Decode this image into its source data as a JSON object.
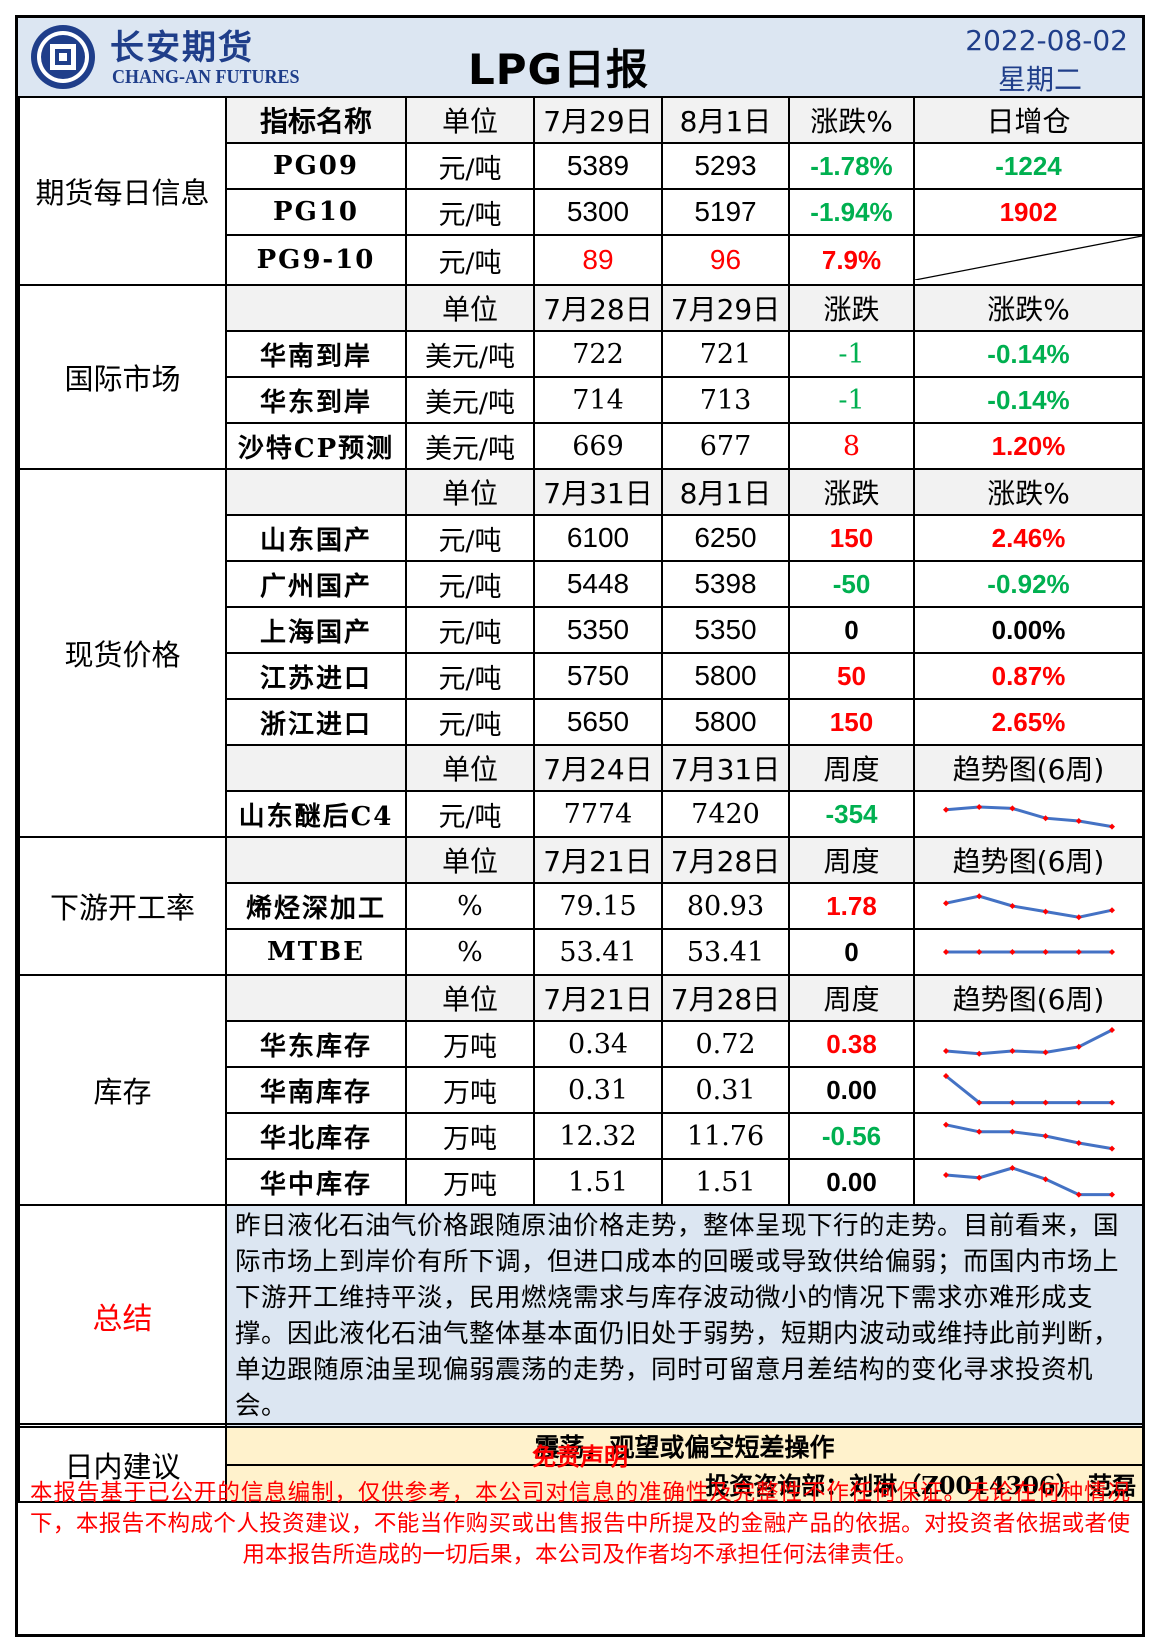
{
  "header": {
    "logo_cn": "长安期货",
    "logo_en": "CHANG-AN FUTURES",
    "title": "LPG日报",
    "date": "2022-08-02",
    "weekday": "星期二"
  },
  "futures": {
    "section": "期货每日信息",
    "headers": [
      "指标名称",
      "单位",
      "7月29日",
      "8月1日",
      "涨跌%",
      "日增仓"
    ],
    "rows": [
      {
        "name": "PG09",
        "unit": "元/吨",
        "v1": "5389",
        "v2": "5293",
        "chg": "-1.78%",
        "oi": "-1224"
      },
      {
        "name": "PG10",
        "unit": "元/吨",
        "v1": "5300",
        "v2": "5197",
        "chg": "-1.94%",
        "oi": "1902"
      },
      {
        "name": "PG9-10",
        "unit": "元/吨",
        "v1": "89",
        "v2": "96",
        "chg": "7.9%",
        "oi": ""
      }
    ]
  },
  "intl": {
    "section": "国际市场",
    "headers": [
      "",
      "单位",
      "7月28日",
      "7月29日",
      "涨跌",
      "涨跌%"
    ],
    "rows": [
      {
        "name": "华南到岸",
        "unit": "美元/吨",
        "v1": "722",
        "v2": "721",
        "chg": "-1",
        "pct": "-0.14%"
      },
      {
        "name": "华东到岸",
        "unit": "美元/吨",
        "v1": "714",
        "v2": "713",
        "chg": "-1",
        "pct": "-0.14%"
      },
      {
        "name": "沙特CP预测",
        "unit": "美元/吨",
        "v1": "669",
        "v2": "677",
        "chg": "8",
        "pct": "1.20%"
      }
    ]
  },
  "spot": {
    "section": "现货价格",
    "headers": [
      "",
      "单位",
      "7月31日",
      "8月1日",
      "涨跌",
      "涨跌%"
    ],
    "rows": [
      {
        "name": "山东国产",
        "unit": "元/吨",
        "v1": "6100",
        "v2": "6250",
        "chg": "150",
        "pct": "2.46%"
      },
      {
        "name": "广州国产",
        "unit": "元/吨",
        "v1": "5448",
        "v2": "5398",
        "chg": "-50",
        "pct": "-0.92%"
      },
      {
        "name": "上海国产",
        "unit": "元/吨",
        "v1": "5350",
        "v2": "5350",
        "chg": "0",
        "pct": "0.00%"
      },
      {
        "name": "江苏进口",
        "unit": "元/吨",
        "v1": "5750",
        "v2": "5800",
        "chg": "50",
        "pct": "0.87%"
      },
      {
        "name": "浙江进口",
        "unit": "元/吨",
        "v1": "5650",
        "v2": "5800",
        "chg": "150",
        "pct": "2.65%"
      }
    ],
    "headers2": [
      "",
      "单位",
      "7月24日",
      "7月31日",
      "周度",
      "趋势图(6周)"
    ],
    "c4": {
      "name": "山东醚后C4",
      "unit": "元/吨",
      "v1": "7774",
      "v2": "7420",
      "chg": "-354",
      "trend": [
        0.65,
        0.75,
        0.7,
        0.35,
        0.25,
        0.05
      ]
    }
  },
  "downstream": {
    "section": "下游开工率",
    "headers": [
      "",
      "单位",
      "7月21日",
      "7月28日",
      "周度",
      "趋势图(6周)"
    ],
    "rows": [
      {
        "name": "烯烃深加工",
        "unit": "%",
        "v1": "79.15",
        "v2": "80.93",
        "chg": "1.78",
        "trend": [
          0.6,
          0.85,
          0.5,
          0.3,
          0.1,
          0.35
        ]
      },
      {
        "name": "MTBE",
        "unit": "%",
        "v1": "53.41",
        "v2": "53.41",
        "chg": "0",
        "trend": [
          0.5,
          0.5,
          0.5,
          0.5,
          0.5,
          0.5
        ]
      }
    ]
  },
  "inventory": {
    "section": "库存",
    "headers": [
      "",
      "单位",
      "7月21日",
      "7月28日",
      "周度",
      "趋势图(6周)"
    ],
    "rows": [
      {
        "name": "华东库存",
        "unit": "万吨",
        "v1": "0.34",
        "v2": "0.72",
        "chg": "0.38",
        "trend": [
          0.25,
          0.15,
          0.25,
          0.2,
          0.4,
          1.0
        ]
      },
      {
        "name": "华南库存",
        "unit": "万吨",
        "v1": "0.31",
        "v2": "0.31",
        "chg": "0.00",
        "trend": [
          1.0,
          0.05,
          0.05,
          0.05,
          0.05,
          0.05
        ]
      },
      {
        "name": "华北库存",
        "unit": "万吨",
        "v1": "12.32",
        "v2": "11.76",
        "chg": "-0.56",
        "trend": [
          0.9,
          0.65,
          0.65,
          0.5,
          0.25,
          0.05
        ]
      },
      {
        "name": "华中库存",
        "unit": "万吨",
        "v1": "1.51",
        "v2": "1.51",
        "chg": "0.00",
        "trend": [
          0.75,
          0.65,
          1.0,
          0.6,
          0.05,
          0.05
        ]
      }
    ]
  },
  "summary": {
    "label": "总结",
    "text": "昨日液化石油气价格跟随原油价格走势，整体呈现下行的走势。目前看来，国际市场上到岸价有所下调，但进口成本的回暖或导致供给偏弱；而国内市场上下游开工维持平淡，民用燃烧需求与库存波动微小的情况下需求亦难形成支撑。因此液化石油气整体基本面仍旧处于弱势，短期内波动或维持此前判断，单边跟随原油呈现偏弱震荡的走势，同时可留意月差结构的变化寻求投资机会。"
  },
  "advice": {
    "label": "日内建议",
    "text": "震荡，观望或偏空短差操作",
    "consult": "投资咨询部：刘琳（Z0014306） 范磊"
  },
  "disclaimer": {
    "title": "免责声明",
    "text": "本报告基于已公开的信息编制，仅供参考，本公司对信息的准确性及完整性不作任何保证。无论在何种情况下，本报告不构成个人投资建议，不能当作购买或出售报告中所提及的金融产品的依据。对投资者依据或者使用本报告所造成的一切后果，本公司及作者均不承担任何法律责任。"
  },
  "colors": {
    "red": "#ff0000",
    "green": "#00b050",
    "trend_line": "#4472c4",
    "trend_marker": "#ff0000"
  }
}
